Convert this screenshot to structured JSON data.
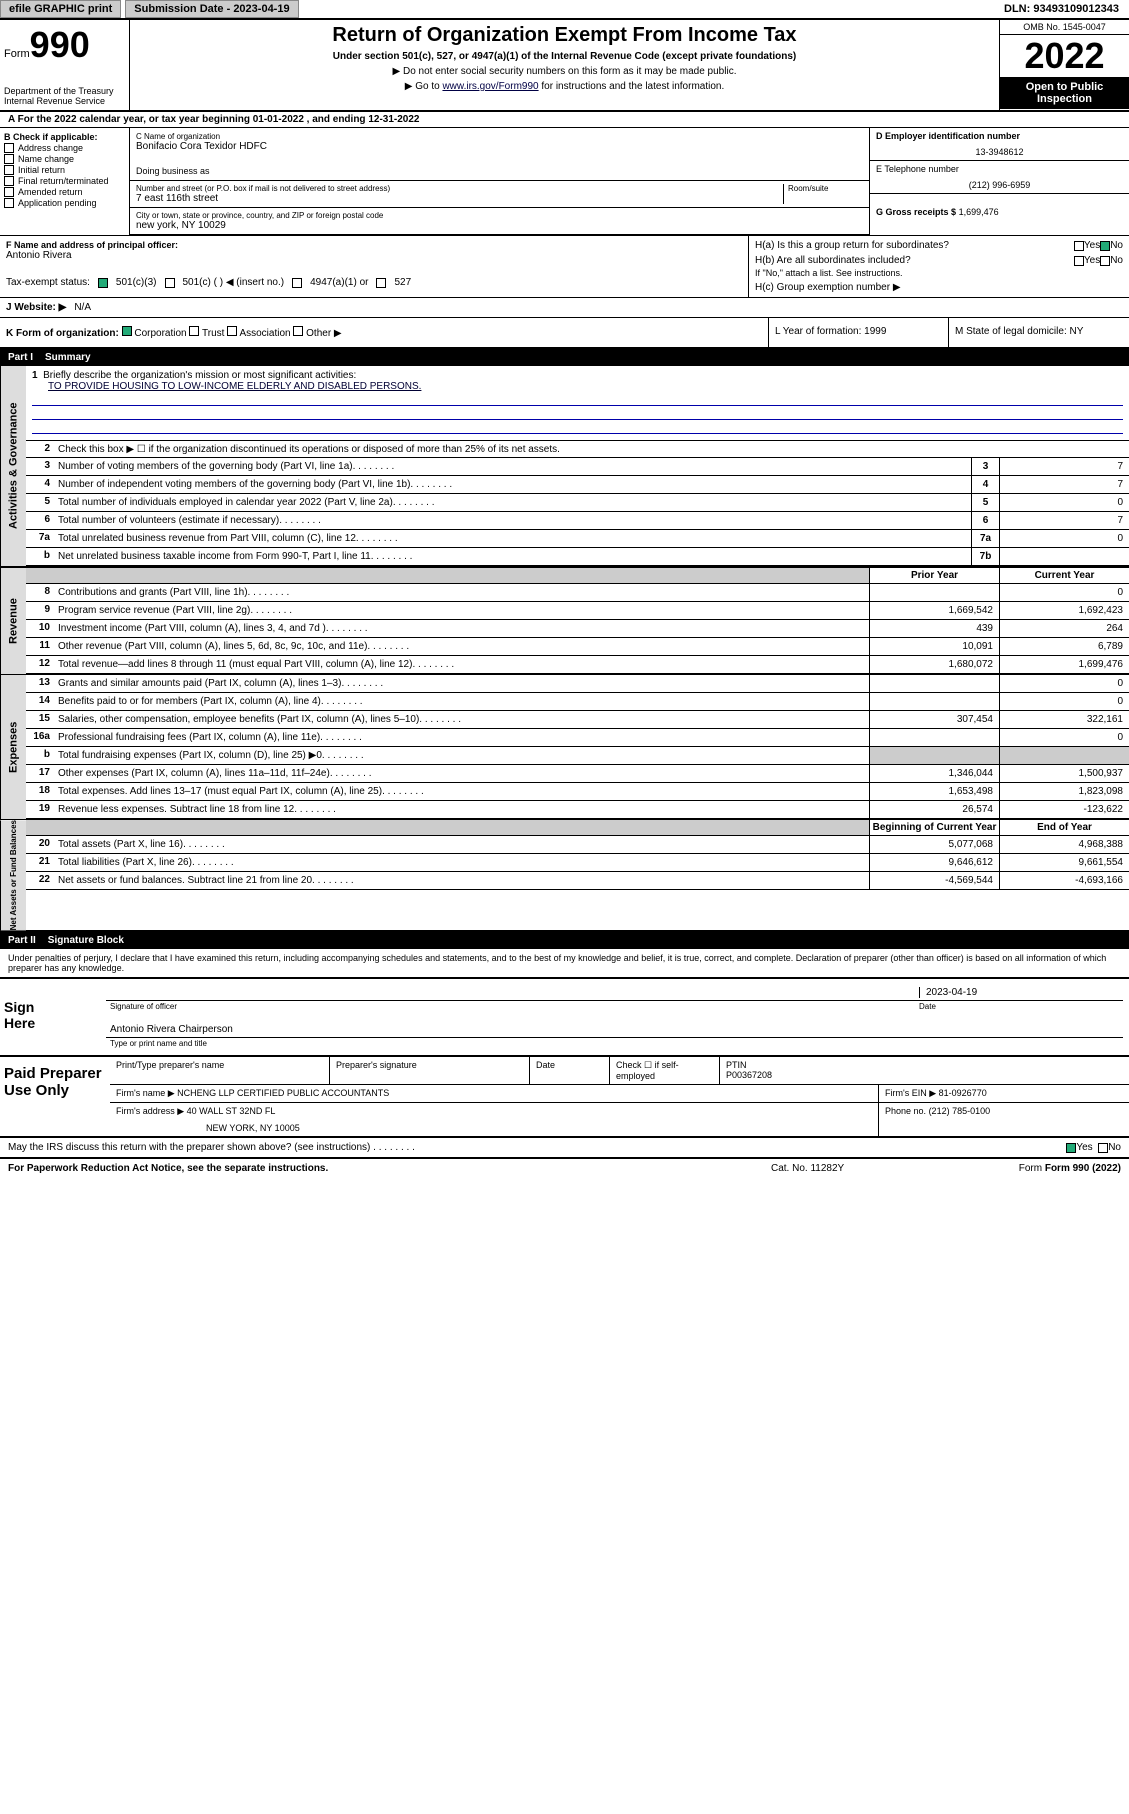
{
  "header": {
    "efile": "efile GRAPHIC print",
    "submission": "Submission Date - 2023-04-19",
    "dln": "DLN: 93493109012343"
  },
  "form_header": {
    "form_label": "Form",
    "form_num": "990",
    "dept": "Department of the Treasury",
    "irs": "Internal Revenue Service",
    "title": "Return of Organization Exempt From Income Tax",
    "subtitle": "Under section 501(c), 527, or 4947(a)(1) of the Internal Revenue Code (except private foundations)",
    "note1": "▶ Do not enter social security numbers on this form as it may be made public.",
    "note2_pre": "▶ Go to ",
    "note2_link": "www.irs.gov/Form990",
    "note2_post": " for instructions and the latest information.",
    "omb": "OMB No. 1545-0047",
    "year": "2022",
    "open": "Open to Public Inspection"
  },
  "tax_year": "A For the 2022 calendar year, or tax year beginning 01-01-2022   , and ending 12-31-2022",
  "section_b": {
    "b_label": "B Check if applicable:",
    "checks": [
      "Address change",
      "Name change",
      "Initial return",
      "Final return/terminated",
      "Amended return",
      "Application pending"
    ],
    "c_label": "C Name of organization",
    "org_name": "Bonifacio Cora Texidor HDFC",
    "dba": "Doing business as",
    "num_street_label": "Number and street (or P.O. box if mail is not delivered to street address)",
    "room": "Room/suite",
    "street": "7 east 116th street",
    "city_label": "City or town, state or province, country, and ZIP or foreign postal code",
    "city": "new york, NY  10029",
    "d_label": "D Employer identification number",
    "ein": "13-3948612",
    "e_label": "E Telephone number",
    "phone": "(212) 996-6959",
    "g_label": "G Gross receipts $",
    "gross": "1,699,476"
  },
  "row_f": {
    "f_label": "F  Name and address of principal officer:",
    "officer": "Antonio Rivera",
    "ha": "H(a)  Is this a group return for subordinates?",
    "hb": "H(b)  Are all subordinates included?",
    "hb_note": "If \"No,\" attach a list. See instructions.",
    "hc": "H(c)  Group exemption number ▶",
    "yes": "Yes",
    "no": "No"
  },
  "tax_exempt": {
    "label": "Tax-exempt status:",
    "opt1": "501(c)(3)",
    "opt2": "501(c) (  ) ◀ (insert no.)",
    "opt3": "4947(a)(1) or",
    "opt4": "527"
  },
  "website": {
    "label": "J   Website: ▶",
    "val": "N/A"
  },
  "row_k": {
    "k": "K Form of organization:",
    "corp": "Corporation",
    "trust": "Trust",
    "assoc": "Association",
    "other": "Other ▶",
    "l": "L Year of formation: 1999",
    "m": "M State of legal domicile: NY"
  },
  "part1": {
    "label": "Part I",
    "title": "Summary"
  },
  "summary": {
    "line1_label": "Briefly describe the organization's mission or most significant activities:",
    "mission": "TO PROVIDE HOUSING TO LOW-INCOME ELDERLY AND DISABLED PERSONS.",
    "line2": "Check this box ▶ ☐  if the organization discontinued its operations or disposed of more than 25% of its net assets.",
    "lines": [
      {
        "n": "3",
        "t": "Number of voting members of the governing body (Part VI, line 1a)",
        "b": "3",
        "v": "7"
      },
      {
        "n": "4",
        "t": "Number of independent voting members of the governing body (Part VI, line 1b)",
        "b": "4",
        "v": "7"
      },
      {
        "n": "5",
        "t": "Total number of individuals employed in calendar year 2022 (Part V, line 2a)",
        "b": "5",
        "v": "0"
      },
      {
        "n": "6",
        "t": "Total number of volunteers (estimate if necessary)",
        "b": "6",
        "v": "7"
      },
      {
        "n": "7a",
        "t": "Total unrelated business revenue from Part VIII, column (C), line 12",
        "b": "7a",
        "v": "0"
      },
      {
        "n": " b",
        "t": "Net unrelated business taxable income from Form 990-T, Part I, line 11",
        "b": "7b",
        "v": ""
      }
    ],
    "prior": "Prior Year",
    "current": "Current Year",
    "rev": [
      {
        "n": "8",
        "t": "Contributions and grants (Part VIII, line 1h)",
        "p": "",
        "c": "0"
      },
      {
        "n": "9",
        "t": "Program service revenue (Part VIII, line 2g)",
        "p": "1,669,542",
        "c": "1,692,423"
      },
      {
        "n": "10",
        "t": "Investment income (Part VIII, column (A), lines 3, 4, and 7d )",
        "p": "439",
        "c": "264"
      },
      {
        "n": "11",
        "t": "Other revenue (Part VIII, column (A), lines 5, 6d, 8c, 9c, 10c, and 11e)",
        "p": "10,091",
        "c": "6,789"
      },
      {
        "n": "12",
        "t": "Total revenue—add lines 8 through 11 (must equal Part VIII, column (A), line 12)",
        "p": "1,680,072",
        "c": "1,699,476"
      }
    ],
    "exp": [
      {
        "n": "13",
        "t": "Grants and similar amounts paid (Part IX, column (A), lines 1–3)",
        "p": "",
        "c": "0"
      },
      {
        "n": "14",
        "t": "Benefits paid to or for members (Part IX, column (A), line 4)",
        "p": "",
        "c": "0"
      },
      {
        "n": "15",
        "t": "Salaries, other compensation, employee benefits (Part IX, column (A), lines 5–10)",
        "p": "307,454",
        "c": "322,161"
      },
      {
        "n": "16a",
        "t": "Professional fundraising fees (Part IX, column (A), line 11e)",
        "p": "",
        "c": "0"
      },
      {
        "n": "b",
        "t": "Total fundraising expenses (Part IX, column (D), line 25) ▶0",
        "p": "GRAY",
        "c": "GRAY"
      },
      {
        "n": "17",
        "t": "Other expenses (Part IX, column (A), lines 11a–11d, 11f–24e)",
        "p": "1,346,044",
        "c": "1,500,937"
      },
      {
        "n": "18",
        "t": "Total expenses. Add lines 13–17 (must equal Part IX, column (A), line 25)",
        "p": "1,653,498",
        "c": "1,823,098"
      },
      {
        "n": "19",
        "t": "Revenue less expenses. Subtract line 18 from line 12",
        "p": "26,574",
        "c": "-123,622"
      }
    ],
    "begin": "Beginning of Current Year",
    "end": "End of Year",
    "net": [
      {
        "n": "20",
        "t": "Total assets (Part X, line 16)",
        "p": "5,077,068",
        "c": "4,968,388"
      },
      {
        "n": "21",
        "t": "Total liabilities (Part X, line 26)",
        "p": "9,646,612",
        "c": "9,661,554"
      },
      {
        "n": "22",
        "t": "Net assets or fund balances. Subtract line 21 from line 20",
        "p": "-4,569,544",
        "c": "-4,693,166"
      }
    ]
  },
  "side_labels": {
    "gov": "Activities & Governance",
    "rev": "Revenue",
    "exp": "Expenses",
    "net": "Net Assets or Fund Balances"
  },
  "part2": {
    "label": "Part II",
    "title": "Signature Block"
  },
  "sig_decl": "Under penalties of perjury, I declare that I have examined this return, including accompanying schedules and statements, and to the best of my knowledge and belief, it is true, correct, and complete. Declaration of preparer (other than officer) is based on all information of which preparer has any knowledge.",
  "sign": {
    "here": "Sign Here",
    "sig_of": "Signature of officer",
    "date": "Date",
    "date_val": "2023-04-19",
    "name": "Antonio Rivera  Chairperson",
    "name_cap": "Type or print name and title"
  },
  "paid": {
    "label": "Paid Preparer Use Only",
    "h1": "Print/Type preparer's name",
    "h2": "Preparer's signature",
    "h3": "Date",
    "h4": "Check ☐ if self-employed",
    "h5": "PTIN",
    "ptin": "P00367208",
    "firm_name_l": "Firm's name    ▶",
    "firm_name": "NCHENG LLP CERTIFIED PUBLIC ACCOUNTANTS",
    "firm_ein_l": "Firm's EIN ▶",
    "firm_ein": "81-0926770",
    "firm_addr_l": "Firm's address ▶",
    "firm_addr1": "40 WALL ST 32ND FL",
    "firm_addr2": "NEW YORK, NY  10005",
    "phone_l": "Phone no.",
    "phone": "(212) 785-0100"
  },
  "discuss": "May the IRS discuss this return with the preparer shown above? (see instructions)",
  "footer": {
    "pra": "For Paperwork Reduction Act Notice, see the separate instructions.",
    "cat": "Cat. No. 11282Y",
    "form": "Form 990 (2022)"
  }
}
